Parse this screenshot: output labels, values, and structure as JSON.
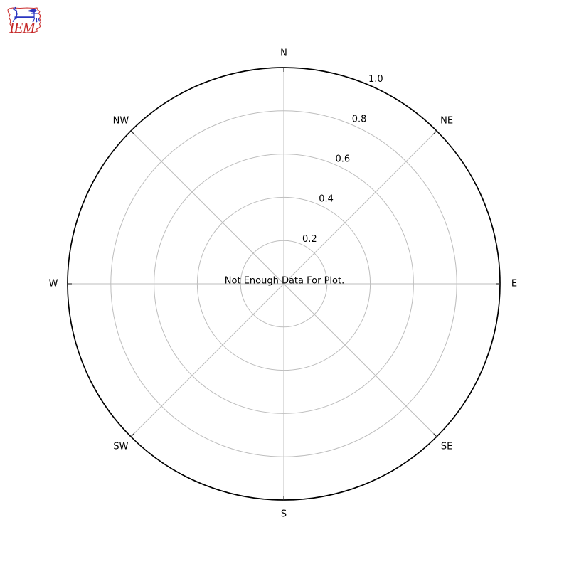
{
  "logo": {
    "text": "IEM",
    "outline_color": "#cc3333",
    "instrument_color": "#2a35c0",
    "text_color": "#c52828"
  },
  "chart_data": {
    "type": "windrose-polar",
    "title": "",
    "note": "Not Enough Data For Plot.",
    "direction_labels": [
      "N",
      "NE",
      "E",
      "SE",
      "S",
      "SW",
      "W",
      "NW"
    ],
    "radial_ticks": [
      0.2,
      0.4,
      0.6,
      0.8,
      1.0
    ],
    "radial_tick_labels": [
      "0.2",
      "0.4",
      "0.6",
      "0.8",
      "1.0"
    ],
    "rlim": [
      0,
      1.0
    ],
    "rlabel_angle_deg": 22.5,
    "series": [],
    "grid": true,
    "legend_position": "none",
    "colors": {
      "outer_circle": "#000000",
      "grid": "#bdbdbd",
      "tick": "#333333",
      "text": "#000000",
      "background": "#ffffff"
    }
  }
}
